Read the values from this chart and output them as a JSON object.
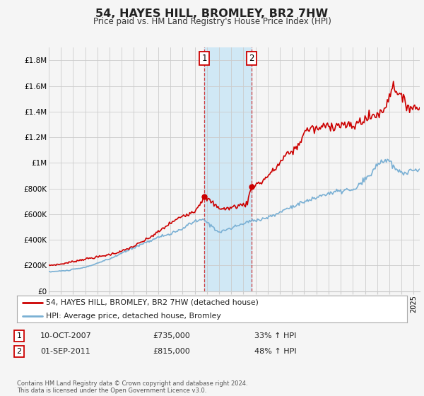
{
  "title": "54, HAYES HILL, BROMLEY, BR2 7HW",
  "subtitle": "Price paid vs. HM Land Registry's House Price Index (HPI)",
  "ylabel_ticks": [
    "£0",
    "£200K",
    "£400K",
    "£600K",
    "£800K",
    "£1M",
    "£1.2M",
    "£1.4M",
    "£1.6M",
    "£1.8M"
  ],
  "ytick_values": [
    0,
    200000,
    400000,
    600000,
    800000,
    1000000,
    1200000,
    1400000,
    1600000,
    1800000
  ],
  "ylim": [
    0,
    1900000
  ],
  "xlim_start": 1995.0,
  "xlim_end": 2025.5,
  "transaction1_x": 2007.78,
  "transaction1_y": 735000,
  "transaction2_x": 2011.67,
  "transaction2_y": 815000,
  "transaction1_label": "1",
  "transaction2_label": "2",
  "shade_x1": 2007.78,
  "shade_x2": 2011.67,
  "legend_line1": "54, HAYES HILL, BROMLEY, BR2 7HW (detached house)",
  "legend_line2": "HPI: Average price, detached house, Bromley",
  "table_row1_num": "1",
  "table_row1_date": "10-OCT-2007",
  "table_row1_price": "£735,000",
  "table_row1_hpi": "33% ↑ HPI",
  "table_row2_num": "2",
  "table_row2_date": "01-SEP-2011",
  "table_row2_price": "£815,000",
  "table_row2_hpi": "48% ↑ HPI",
  "footer": "Contains HM Land Registry data © Crown copyright and database right 2024.\nThis data is licensed under the Open Government Licence v3.0.",
  "red_line_color": "#cc0000",
  "blue_line_color": "#7ab0d4",
  "shade_color": "#d0e8f5",
  "background_color": "#f5f5f5",
  "grid_color": "#cccccc",
  "plot_bg": "#f5f5f5"
}
